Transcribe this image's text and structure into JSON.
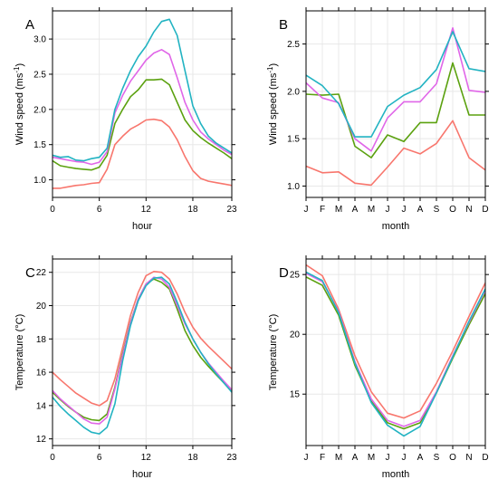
{
  "colors": {
    "series_red": "#F8766D",
    "series_green": "#5BA10F",
    "series_magenta": "#E066E8",
    "series_cyan": "#22B3C2",
    "grid": "#e8e8e8",
    "frame": "#000000"
  },
  "chart_data": [
    {
      "panel": "A",
      "type": "line",
      "xlabel": "hour",
      "ylabel": "Wind speed (ms",
      "ylabel_sup": "-1",
      "ylabel_end": ")",
      "xlim": [
        0,
        23
      ],
      "ylim": [
        0.75,
        3.4
      ],
      "grid": true,
      "xticks": [
        0,
        6,
        12,
        18,
        23
      ],
      "yticks": [
        1.0,
        1.5,
        2.0,
        2.5,
        3.0
      ],
      "ytick_labels": [
        "1.0",
        "1.5",
        "2.0",
        "2.5",
        "3.0"
      ],
      "x": [
        0,
        1,
        2,
        3,
        4,
        5,
        6,
        7,
        8,
        9,
        10,
        11,
        12,
        13,
        14,
        15,
        16,
        17,
        18,
        19,
        20,
        21,
        22,
        23
      ],
      "series": [
        {
          "color_key": "series_red",
          "values": [
            0.88,
            0.88,
            0.9,
            0.92,
            0.93,
            0.95,
            0.96,
            1.15,
            1.5,
            1.62,
            1.72,
            1.78,
            1.85,
            1.86,
            1.84,
            1.75,
            1.57,
            1.33,
            1.13,
            1.02,
            0.98,
            0.96,
            0.94,
            0.92
          ]
        },
        {
          "color_key": "series_green",
          "values": [
            1.27,
            1.2,
            1.18,
            1.16,
            1.15,
            1.14,
            1.18,
            1.35,
            1.8,
            2.0,
            2.18,
            2.28,
            2.42,
            2.42,
            2.43,
            2.35,
            2.1,
            1.85,
            1.7,
            1.6,
            1.52,
            1.45,
            1.38,
            1.3
          ]
        },
        {
          "color_key": "series_magenta",
          "values": [
            1.32,
            1.3,
            1.28,
            1.26,
            1.25,
            1.22,
            1.25,
            1.4,
            1.95,
            2.2,
            2.4,
            2.55,
            2.7,
            2.8,
            2.85,
            2.78,
            2.45,
            2.1,
            1.85,
            1.68,
            1.58,
            1.5,
            1.42,
            1.36
          ]
        },
        {
          "color_key": "series_cyan",
          "values": [
            1.35,
            1.32,
            1.33,
            1.28,
            1.27,
            1.3,
            1.32,
            1.45,
            2.0,
            2.3,
            2.55,
            2.75,
            2.9,
            3.1,
            3.25,
            3.28,
            3.05,
            2.55,
            2.05,
            1.8,
            1.62,
            1.52,
            1.45,
            1.38
          ]
        }
      ]
    },
    {
      "panel": "B",
      "type": "line",
      "xlabel": "month",
      "ylabel": "Wind speed (ms",
      "ylabel_sup": "-1",
      "ylabel_end": ")",
      "xlim": [
        1,
        12
      ],
      "ylim": [
        0.88,
        2.85
      ],
      "grid": true,
      "xticks": [
        1,
        2,
        3,
        4,
        5,
        6,
        7,
        8,
        9,
        10,
        11,
        12
      ],
      "xtick_labels": [
        "J",
        "F",
        "M",
        "A",
        "M",
        "J",
        "J",
        "A",
        "S",
        "O",
        "N",
        "D"
      ],
      "yticks": [
        1.0,
        1.5,
        2.0,
        2.5
      ],
      "ytick_labels": [
        "1.0",
        "1.5",
        "2.0",
        "2.5"
      ],
      "x": [
        1,
        2,
        3,
        4,
        5,
        6,
        7,
        8,
        9,
        10,
        11,
        12
      ],
      "series": [
        {
          "color_key": "series_red",
          "values": [
            1.21,
            1.14,
            1.15,
            1.03,
            1.01,
            1.2,
            1.4,
            1.34,
            1.45,
            1.69,
            1.3,
            1.17
          ]
        },
        {
          "color_key": "series_green",
          "values": [
            1.97,
            1.96,
            1.97,
            1.42,
            1.3,
            1.54,
            1.47,
            1.67,
            1.67,
            2.3,
            1.75,
            1.75
          ]
        },
        {
          "color_key": "series_magenta",
          "values": [
            2.09,
            1.93,
            1.88,
            1.5,
            1.37,
            1.72,
            1.89,
            1.89,
            2.08,
            2.67,
            2.01,
            1.99
          ]
        },
        {
          "color_key": "series_cyan",
          "values": [
            2.17,
            2.06,
            1.87,
            1.52,
            1.52,
            1.84,
            1.96,
            2.04,
            2.23,
            2.63,
            2.24,
            2.21
          ]
        }
      ]
    },
    {
      "panel": "C",
      "type": "line",
      "xlabel": "hour",
      "ylabel": "Temperature (°C)",
      "xlim": [
        0,
        23
      ],
      "ylim": [
        11.6,
        22.8
      ],
      "grid": true,
      "xticks": [
        0,
        6,
        12,
        18,
        23
      ],
      "yticks": [
        12,
        14,
        16,
        18,
        20,
        22
      ],
      "ytick_labels": [
        "12",
        "14",
        "16",
        "18",
        "20",
        "22"
      ],
      "x": [
        0,
        1,
        2,
        3,
        4,
        5,
        6,
        7,
        8,
        9,
        10,
        11,
        12,
        13,
        14,
        15,
        16,
        17,
        18,
        19,
        20,
        21,
        22,
        23
      ],
      "series": [
        {
          "color_key": "series_red",
          "values": [
            16.0,
            15.55,
            15.15,
            14.75,
            14.45,
            14.15,
            14.0,
            14.3,
            15.6,
            17.5,
            19.4,
            20.8,
            21.8,
            22.05,
            22.0,
            21.6,
            20.7,
            19.6,
            18.7,
            18.05,
            17.55,
            17.1,
            16.65,
            16.2
          ]
        },
        {
          "color_key": "series_green",
          "values": [
            14.8,
            14.35,
            13.95,
            13.6,
            13.3,
            13.15,
            13.1,
            13.5,
            15.1,
            17.1,
            19.0,
            20.4,
            21.3,
            21.6,
            21.4,
            21.0,
            19.8,
            18.5,
            17.6,
            16.9,
            16.35,
            15.85,
            15.35,
            14.85
          ]
        },
        {
          "color_key": "series_magenta",
          "values": [
            14.9,
            14.4,
            14.0,
            13.6,
            13.2,
            12.95,
            12.9,
            13.3,
            15.0,
            17.0,
            18.95,
            20.4,
            21.3,
            21.7,
            21.6,
            21.1,
            20.0,
            18.9,
            18.0,
            17.2,
            16.55,
            16.0,
            15.45,
            14.95
          ]
        },
        {
          "color_key": "series_cyan",
          "values": [
            14.5,
            13.95,
            13.5,
            13.1,
            12.7,
            12.4,
            12.3,
            12.7,
            14.1,
            16.7,
            18.8,
            20.3,
            21.2,
            21.65,
            21.7,
            21.3,
            20.2,
            19.0,
            18.0,
            17.2,
            16.5,
            15.9,
            15.35,
            14.8
          ]
        }
      ]
    },
    {
      "panel": "D",
      "type": "line",
      "xlabel": "month",
      "ylabel": "Temperature (°C)",
      "xlim": [
        1,
        12
      ],
      "ylim": [
        10.7,
        26.3
      ],
      "grid": true,
      "xticks": [
        1,
        2,
        3,
        4,
        5,
        6,
        7,
        8,
        9,
        10,
        11,
        12
      ],
      "xtick_labels": [
        "J",
        "F",
        "M",
        "A",
        "M",
        "J",
        "J",
        "A",
        "S",
        "O",
        "N",
        "D"
      ],
      "yticks": [
        15,
        20,
        25
      ],
      "ytick_labels": [
        "15",
        "20",
        "25"
      ],
      "x": [
        1,
        2,
        3,
        4,
        5,
        6,
        7,
        8,
        9,
        10,
        11,
        12
      ],
      "series": [
        {
          "color_key": "series_red",
          "values": [
            25.8,
            24.9,
            22.1,
            18.2,
            15.2,
            13.4,
            13.0,
            13.6,
            15.9,
            18.6,
            21.5,
            24.3
          ]
        },
        {
          "color_key": "series_green",
          "values": [
            24.8,
            24.1,
            21.6,
            17.4,
            14.4,
            12.6,
            12.1,
            12.6,
            15.1,
            18.0,
            20.8,
            23.4
          ]
        },
        {
          "color_key": "series_magenta",
          "values": [
            25.1,
            24.4,
            21.9,
            17.7,
            14.6,
            12.8,
            12.3,
            12.8,
            15.2,
            18.2,
            21.0,
            23.7
          ]
        },
        {
          "color_key": "series_cyan",
          "values": [
            25.2,
            24.5,
            21.8,
            17.6,
            14.3,
            12.4,
            11.5,
            12.3,
            15.1,
            18.1,
            21.1,
            23.8
          ]
        }
      ]
    }
  ]
}
